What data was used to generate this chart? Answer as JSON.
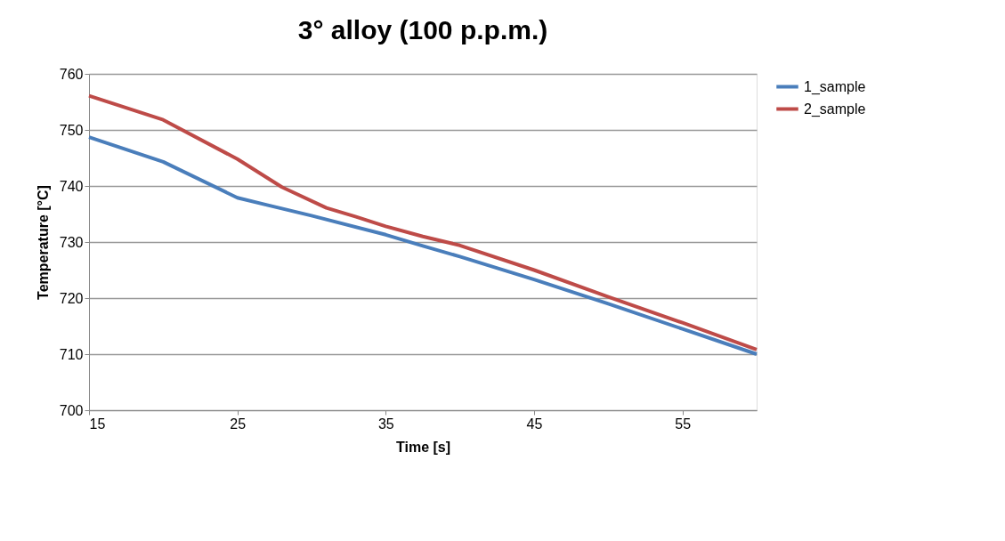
{
  "chart_data": {
    "type": "line",
    "title": "3° alloy (100 p.p.m.)",
    "xlabel": "Time [s]",
    "ylabel": "Temperature [°C]",
    "xlim": [
      15,
      60
    ],
    "xticks": [
      15,
      25,
      35,
      45,
      55
    ],
    "ylim": [
      700,
      760
    ],
    "yticks": [
      700,
      710,
      720,
      730,
      740,
      750,
      760
    ],
    "grid": "y",
    "legend": "right",
    "marker": "none",
    "line_style": "solid",
    "series": [
      {
        "name": "1_sample",
        "color": "#4a7ebb",
        "x": [
          15,
          20,
          25,
          27,
          30,
          35,
          37.5,
          40,
          45,
          50,
          55,
          60
        ],
        "values": [
          748.7,
          744.3,
          737.9,
          736.6,
          734.7,
          731.3,
          729.3,
          727.4,
          723.3,
          719.0,
          714.5,
          710.0
        ]
      },
      {
        "name": "2_sample",
        "color": "#be4b48",
        "x": [
          15,
          20,
          25,
          28,
          31,
          33,
          35,
          37.5,
          40,
          45,
          50,
          55,
          60
        ],
        "values": [
          756.1,
          751.8,
          744.8,
          739.8,
          736.1,
          734.5,
          732.8,
          731.0,
          729.4,
          725.0,
          720.2,
          715.6,
          710.8
        ]
      }
    ]
  }
}
